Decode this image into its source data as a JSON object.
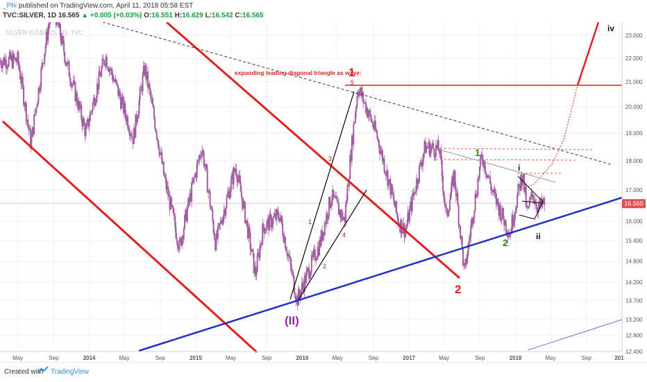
{
  "header": {
    "user": "_Phi",
    "published": "published on TradingView.com, April 11, 2018 05:58 EST",
    "symbol": "TVC:SILVER, 1D",
    "last": "16.565",
    "change": "▲ +0.005 (+0.03%)",
    "open_label": "O:",
    "open": "16.551",
    "high_label": "H:",
    "high": "16.629",
    "low_label": "L:",
    "low": "16.542",
    "close_label": "C:",
    "close": "16.565"
  },
  "footer": {
    "created_with": "Created with",
    "brand": "TradingView"
  },
  "chart_data": {
    "type": "line",
    "subtype": "candlestick",
    "watermark": "SILVER (US$/OZ), 1D, TVC",
    "x_tick_labels": [
      "May",
      "Sep",
      "2014",
      "May",
      "Sep",
      "2015",
      "May",
      "Sep",
      "2016",
      "May",
      "Sep",
      "2017",
      "May",
      "Sep",
      "2018",
      "May",
      "Sep",
      "201"
    ],
    "y_tick_labels": [
      "23.000",
      "22.000",
      "21.000",
      "20.000",
      "19.000",
      "18.000",
      "17.000",
      "16.000",
      "15.400",
      "14.800",
      "14.200",
      "13.700",
      "13.200",
      "12.800",
      "12.400"
    ],
    "ylim": [
      12.4,
      23.6
    ],
    "y_scale": "log",
    "last_price": 16.565,
    "price_path": [
      [
        "2013-05-01",
        21.9
      ],
      [
        "2013-06-15",
        18.6
      ],
      [
        "2013-08-28",
        24.5
      ],
      [
        "2013-10-15",
        21.8
      ],
      [
        "2013-12-20",
        19.0
      ],
      [
        "2014-02-25",
        22.1
      ],
      [
        "2014-06-01",
        18.8
      ],
      [
        "2014-07-10",
        21.6
      ],
      [
        "2014-09-15",
        17.4
      ],
      [
        "2014-11-06",
        15.2
      ],
      [
        "2015-01-22",
        18.5
      ],
      [
        "2015-03-10",
        15.3
      ],
      [
        "2015-05-18",
        17.8
      ],
      [
        "2015-07-24",
        14.4
      ],
      [
        "2015-08-20",
        15.8
      ],
      [
        "2015-10-15",
        16.2
      ],
      [
        "2015-12-14",
        13.7
      ],
      [
        "2016-03-01",
        15.3
      ],
      [
        "2016-04-10",
        16.8
      ],
      [
        "2016-05-25",
        16.0
      ],
      [
        "2016-07-10",
        20.8
      ],
      [
        "2016-09-10",
        19.0
      ],
      [
        "2016-11-25",
        16.0
      ],
      [
        "2016-12-20",
        15.7
      ],
      [
        "2017-02-25",
        18.5
      ],
      [
        "2017-04-15",
        18.4
      ],
      [
        "2017-05-08",
        16.1
      ],
      [
        "2017-06-05",
        17.5
      ],
      [
        "2017-07-10",
        14.4
      ],
      [
        "2017-09-08",
        18.2
      ],
      [
        "2017-10-15",
        16.9
      ],
      [
        "2017-12-12",
        15.6
      ],
      [
        "2018-01-25",
        17.6
      ],
      [
        "2018-02-10",
        16.2
      ],
      [
        "2018-02-28",
        16.9
      ],
      [
        "2018-03-20",
        16.4
      ],
      [
        "2018-04-11",
        16.565
      ]
    ],
    "annotations": {
      "title": "expanding leading diagonal triangle as wave:",
      "wave_1_big": "1",
      "wave_2_big": "2",
      "wave_II": "(II)",
      "wave_1_green": "1",
      "wave_2_green": "2",
      "wave_i": "i",
      "wave_ii": "ii",
      "wave_iv": "iv",
      "diag_1": "1",
      "diag_2": "2",
      "diag_3": "3",
      "diag_4": "4",
      "diag_5": "5"
    },
    "colors": {
      "candles": "#a15ea1",
      "channel": "#e02020",
      "support": "#1f2fc8",
      "annotation": "#e02020",
      "green_label": "#3a7d12",
      "purple_label": "#8a2aa5"
    }
  }
}
